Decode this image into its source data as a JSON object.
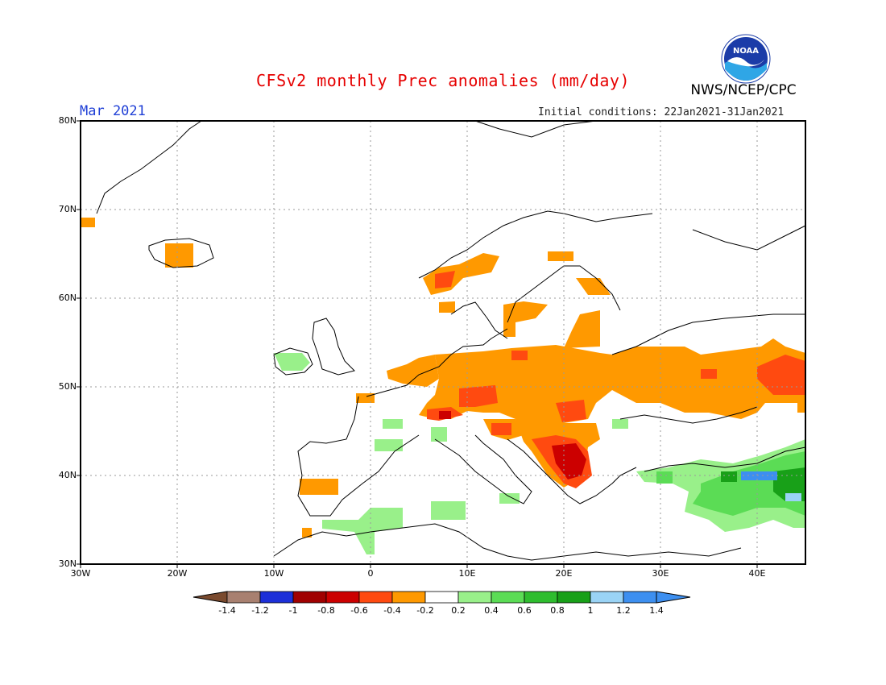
{
  "title": "CFSv2 monthly Prec anomalies (mm/day)",
  "agency": "NWS/NCEP/CPC",
  "logo_text": "NOAA",
  "month": "Mar 2021",
  "initial_conditions": "Initial conditions: 22Jan2021-31Jan2021",
  "map": {
    "lon_range": [
      -30,
      45
    ],
    "lat_range": [
      30,
      80
    ],
    "lat_labels": [
      "80N",
      "70N",
      "60N",
      "50N",
      "40N",
      "30N"
    ],
    "lon_labels": [
      "30W",
      "20W",
      "10W",
      "0",
      "10E",
      "20E",
      "30E",
      "40E"
    ]
  },
  "colorbar": {
    "labels": [
      "-1.4",
      "-1.2",
      "-1",
      "-0.8",
      "-0.6",
      "-0.4",
      "-0.2",
      "0.2",
      "0.4",
      "0.6",
      "0.8",
      "1",
      "1.2",
      "1.4"
    ],
    "colors": [
      "#7a4a2e",
      "#a88070",
      "#1c2fd8",
      "#a00000",
      "#cc0000",
      "#ff4a10",
      "#ff9900",
      "#ffffff",
      "#99f08a",
      "#5bdc55",
      "#2ebd2e",
      "#18a018",
      "#9ad3f5",
      "#3d8ff0",
      "#3d8ff0"
    ]
  },
  "anomaly_colors": {
    "orange": "#ff9900",
    "red_orange": "#ff4a10",
    "red": "#cc0000",
    "dark_red": "#a00000",
    "light_green": "#99f08a",
    "green": "#5bdc55",
    "mid_green": "#2ebd2e",
    "dark_green": "#18a018",
    "light_blue": "#9ad3f5",
    "blue": "#3d8ff0"
  }
}
